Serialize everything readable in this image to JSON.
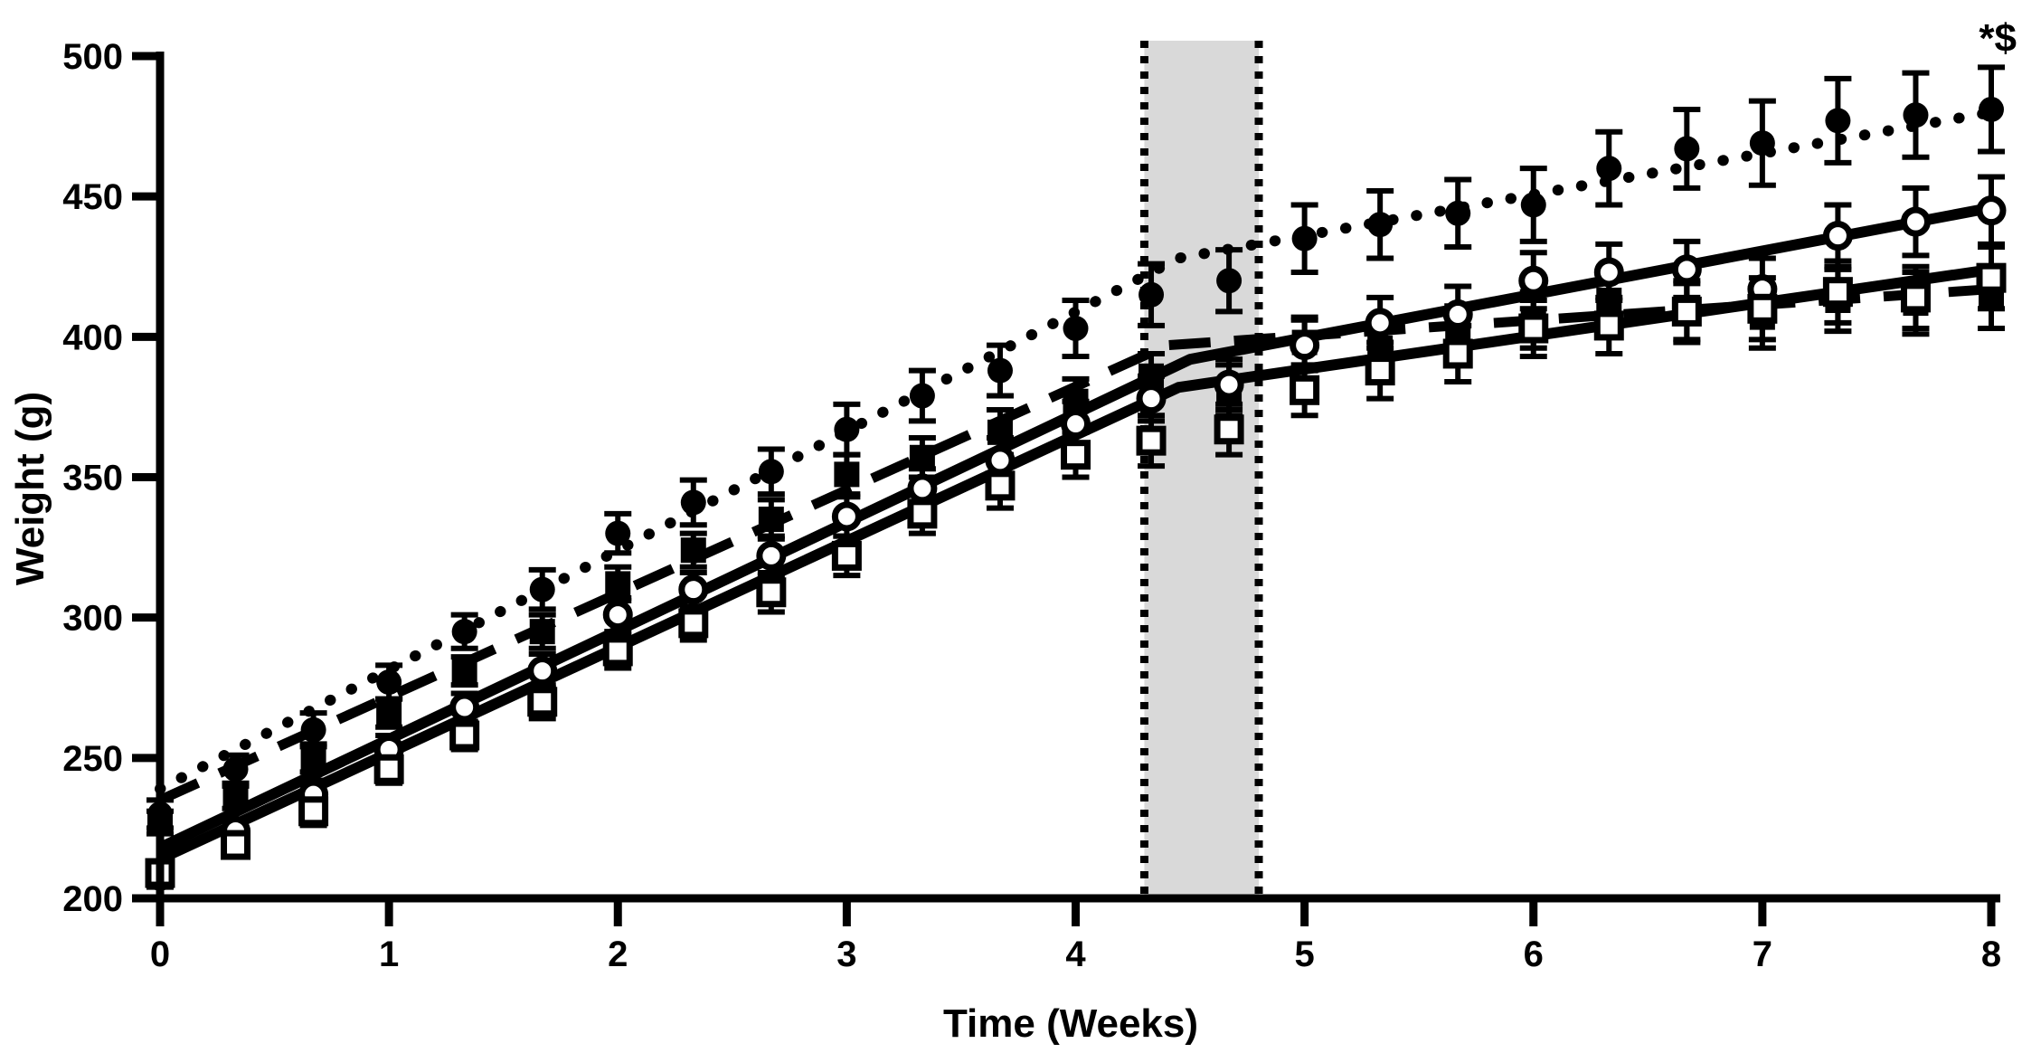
{
  "figure": {
    "description": "Body weight growth curves of four rat groups over 8 weeks with a shaded intervention window",
    "annotation": "*$",
    "background_color": "#ffffff",
    "ink_color": "#000000",
    "shade_color": "#d9d9d9"
  },
  "chart_data": {
    "type": "scatter",
    "title": "",
    "xlabel": "Time (Weeks)",
    "ylabel": "Weight (g)",
    "xlim": [
      0,
      8
    ],
    "ylim": [
      200,
      500
    ],
    "xticks": [
      "0",
      "1",
      "2",
      "3",
      "4",
      "5",
      "6",
      "7",
      "8"
    ],
    "yticks": [
      "200",
      "250",
      "300",
      "350",
      "400",
      "450",
      "500"
    ],
    "grid": false,
    "legend": "none",
    "annotation": {
      "text": "*$",
      "x": 8,
      "y": 497,
      "position": "top-right"
    },
    "shaded_region": {
      "x0": 4.3,
      "x1": 4.8,
      "fill": "#d9d9d9",
      "border_style": "dotted",
      "border_color": "#000000"
    },
    "x": [
      0,
      0.33,
      0.67,
      1,
      1.33,
      1.67,
      2,
      2.33,
      2.67,
      3,
      3.33,
      3.67,
      4,
      4.33,
      4.67,
      5,
      5.33,
      5.67,
      6,
      6.33,
      6.67,
      7,
      7.33,
      7.67,
      8
    ],
    "series": [
      {
        "name": "filled-circle-group",
        "marker": "circle",
        "marker_fill": "filled",
        "line_style": "dotted",
        "values": [
          230,
          246,
          260,
          277,
          295,
          310,
          330,
          341,
          352,
          367,
          379,
          388,
          403,
          415,
          420,
          435,
          440,
          444,
          447,
          460,
          467,
          469,
          477,
          479,
          481
        ],
        "errors": [
          5,
          5,
          6,
          6,
          6,
          7,
          7,
          8,
          8,
          9,
          9,
          9,
          10,
          11,
          11,
          12,
          12,
          12,
          13,
          13,
          14,
          15,
          15,
          15,
          15
        ],
        "trend": [
          [
            0,
            239
          ],
          [
            4.45,
            428
          ],
          [
            8,
            480
          ]
        ]
      },
      {
        "name": "filled-square-group",
        "marker": "square",
        "marker_fill": "filled",
        "line_style": "dashed",
        "values": [
          227,
          236,
          250,
          266,
          281,
          295,
          312,
          324,
          335,
          351,
          357,
          366,
          377,
          386,
          381,
          398,
          396,
          401,
          406,
          413,
          409,
          407,
          413,
          412,
          414
        ],
        "errors": [
          4,
          4,
          5,
          5,
          5,
          6,
          6,
          6,
          7,
          7,
          7,
          8,
          8,
          8,
          9,
          9,
          9,
          10,
          10,
          10,
          10,
          11,
          11,
          11,
          11
        ],
        "trend": [
          [
            0,
            235
          ],
          [
            4.4,
            397
          ],
          [
            8,
            417
          ]
        ]
      },
      {
        "name": "open-circle-group",
        "marker": "circle",
        "marker_fill": "open",
        "line_style": "solid",
        "values": [
          208,
          224,
          237,
          253,
          268,
          281,
          301,
          310,
          322,
          336,
          346,
          356,
          369,
          378,
          383,
          397,
          405,
          408,
          420,
          423,
          424,
          417,
          436,
          441,
          445
        ],
        "errors": [
          4,
          4,
          5,
          5,
          5,
          6,
          6,
          6,
          7,
          7,
          7,
          8,
          8,
          8,
          9,
          9,
          9,
          10,
          10,
          10,
          10,
          11,
          11,
          12,
          12
        ],
        "trend": [
          [
            0,
            218
          ],
          [
            4.5,
            392
          ],
          [
            8,
            446
          ]
        ]
      },
      {
        "name": "open-square-group",
        "marker": "square",
        "marker_fill": "open",
        "line_style": "solid",
        "values": [
          209,
          219,
          231,
          246,
          258,
          270,
          288,
          298,
          309,
          322,
          337,
          347,
          358,
          363,
          367,
          381,
          388,
          394,
          403,
          404,
          409,
          410,
          416,
          414,
          421
        ],
        "errors": [
          4,
          4,
          5,
          5,
          5,
          6,
          6,
          6,
          7,
          7,
          7,
          8,
          8,
          9,
          9,
          9,
          10,
          10,
          10,
          10,
          11,
          11,
          11,
          11,
          11
        ]
      }
    ]
  }
}
